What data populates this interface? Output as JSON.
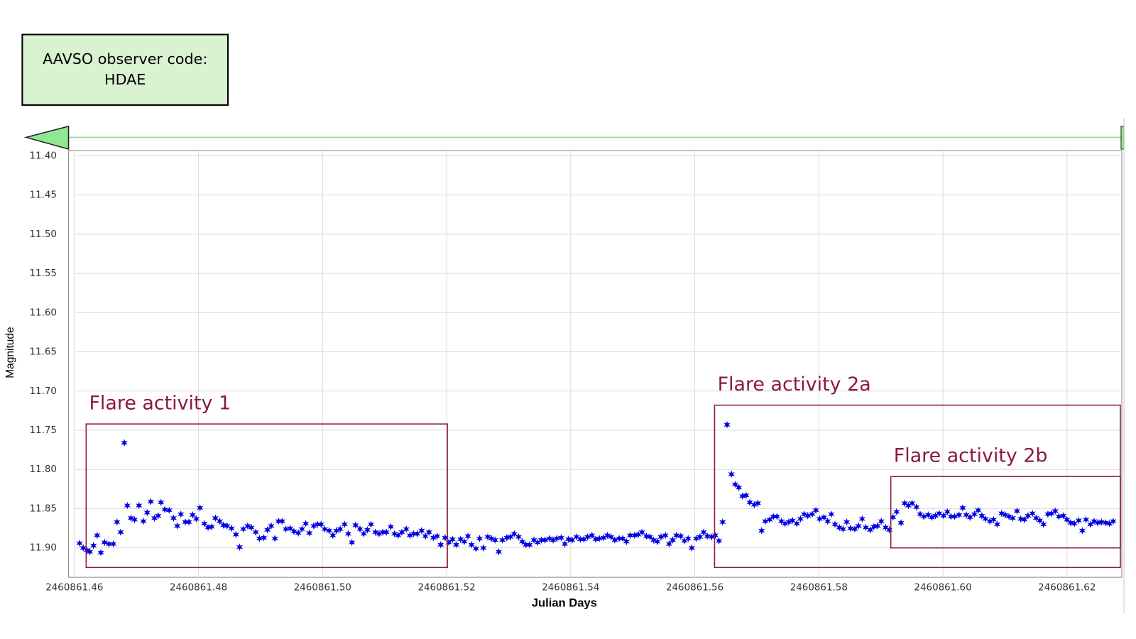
{
  "observer_box": {
    "line1": "AAVSO observer code:",
    "line2": "HDAE"
  },
  "chart_data": {
    "type": "scatter",
    "x_label": "Julian Days",
    "y_label": "Magnitude",
    "color": "#0000e0",
    "grid": true,
    "xlim": [
      2460861.46,
      2460861.6286
    ],
    "ylim": [
      11.9375,
      11.3934
    ],
    "xticks": [
      2460861.46,
      2460861.48,
      {
        "value": 2460861.5,
        "label": "2460861.50"
      },
      2460861.52,
      2460861.54,
      2460861.56,
      2460861.58,
      {
        "value": 2460861.6,
        "label": "2460861.60"
      },
      2460861.62
    ],
    "yticks": [
      {
        "value": 11.4,
        "label": "11.40"
      },
      11.45,
      {
        "value": 11.5,
        "label": "11.50"
      },
      11.55,
      {
        "value": 11.6,
        "label": "11.60"
      },
      11.65,
      {
        "value": 11.7,
        "label": "11.70"
      },
      11.75,
      {
        "value": 11.8,
        "label": "11.80"
      },
      11.85,
      {
        "value": 11.9,
        "label": "11.90"
      }
    ],
    "annotations": [
      {
        "text": "Flare activity 1",
        "x": [
          2460861.46189,
          2460861.52012
        ],
        "y": [
          11.742,
          11.925
        ]
      },
      {
        "text": "Flare activity 2a",
        "x": [
          2460861.56319,
          2460861.6286
        ],
        "y": [
          11.718,
          11.925
        ]
      },
      {
        "text": "Flare activity 2b",
        "x": [
          2460861.5916,
          2460861.6286
        ],
        "y": [
          11.809,
          11.9
        ]
      }
    ],
    "x": [
      2460861.46083,
      2460861.46142,
      2460861.46201,
      2460861.46249,
      2460861.46308,
      2460861.46367,
      2460861.46426,
      2460861.46485,
      2460861.46556,
      2460861.46627,
      2460861.46686,
      2460861.46746,
      2460861.46805,
      2460861.46852,
      2460861.46911,
      2460861.4697,
      2460861.47041,
      2460861.47112,
      2460861.47172,
      2460861.47231,
      2460861.4729,
      2460861.47349,
      2460861.47396,
      2460861.47456,
      2460861.47527,
      2460861.47598,
      2460861.47657,
      2460861.47716,
      2460861.47787,
      2460861.47846,
      2460861.47905,
      2460861.47964,
      2460861.48024,
      2460861.48095,
      2460861.48154,
      2460861.48213,
      2460861.48272,
      2460861.48343,
      2460861.48402,
      2460861.48461,
      2460861.48532,
      2460861.48603,
      2460861.48663,
      2460861.48722,
      2460861.48793,
      2460861.48852,
      2460861.48923,
      2460861.48982,
      2460861.49053,
      2460861.49112,
      2460861.49172,
      2460861.49231,
      2460861.4929,
      2460861.49349,
      2460861.49408,
      2460861.49479,
      2460861.49538,
      2460861.49609,
      2460861.49669,
      2460861.49728,
      2460861.49787,
      2460861.49858,
      2460861.49917,
      2460861.49976,
      2460861.50035,
      2460861.50106,
      2460861.50166,
      2460861.50225,
      2460861.50284,
      2460861.50355,
      2460861.50414,
      2460861.50473,
      2460861.50532,
      2460861.50603,
      2460861.50663,
      2460861.50722,
      2460861.50781,
      2460861.50852,
      2460861.50911,
      2460861.5097,
      2460861.51029,
      2460861.511,
      2460861.5116,
      2460861.51219,
      2460861.51278,
      2460861.51349,
      2460861.51408,
      2460861.51467,
      2460861.51526,
      2460861.51597,
      2460861.51657,
      2460861.51716,
      2460861.51787,
      2460861.51846,
      2460861.51905,
      2460861.51976,
      2460861.52035,
      2460861.52095,
      2460861.52154,
      2460861.52225,
      2460861.52284,
      2460861.52343,
      2460861.52402,
      2460861.52473,
      2460861.52532,
      2460861.52592,
      2460861.52663,
      2460861.52722,
      2460861.52781,
      2460861.5284,
      2460861.52899,
      2460861.5297,
      2460861.53029,
      2460861.53089,
      2460861.5316,
      2460861.53219,
      2460861.53278,
      2460861.53337,
      2460861.53408,
      2460861.53467,
      2460861.53526,
      2460861.53586,
      2460861.53657,
      2460861.53716,
      2460861.53775,
      2460861.53846,
      2460861.53905,
      2460861.53964,
      2460861.54023,
      2460861.54094,
      2460861.54154,
      2460861.54213,
      2460861.54272,
      2460861.54343,
      2460861.54402,
      2460861.54461,
      2460861.54532,
      2460861.54591,
      2460861.54651,
      2460861.5471,
      2460861.54781,
      2460861.5484,
      2460861.54899,
      2460861.54958,
      2460861.55029,
      2460861.55089,
      2460861.55148,
      2460861.55219,
      2460861.55278,
      2460861.55337,
      2460861.55396,
      2460861.55455,
      2460861.55526,
      2460861.55586,
      2460861.55645,
      2460861.55704,
      2460861.55775,
      2460861.55834,
      2460861.55893,
      2460861.55952,
      2460861.56023,
      2460861.56083,
      2460861.56142,
      2460861.56201,
      2460861.56272,
      2460861.56331,
      2460861.5639,
      2460861.56449,
      2460861.5652,
      2460861.56591,
      2460861.56651,
      2460861.5671,
      2460861.56769,
      2460861.56828,
      2460861.56887,
      2460861.56958,
      2460861.57017,
      2460861.57077,
      2460861.57136,
      2460861.57207,
      2460861.57266,
      2460861.57325,
      2460861.57396,
      2460861.57455,
      2460861.57515,
      2460861.57574,
      2460861.57645,
      2460861.57704,
      2460861.57763,
      2460861.57822,
      2460861.57893,
      2460861.57952,
      2460861.58012,
      2460861.58083,
      2460861.58142,
      2460861.58201,
      2460861.5826,
      2460861.58331,
      2460861.5839,
      2460861.58449,
      2460861.58509,
      2460861.5858,
      2460861.58639,
      2460861.58698,
      2460861.58757,
      2460861.58828,
      2460861.58887,
      2460861.58946,
      2460861.59006,
      2460861.59077,
      2460861.59136,
      2460861.59195,
      2460861.59254,
      2460861.59325,
      2460861.59384,
      2460861.59443,
      2460861.59503,
      2460861.59574,
      2460861.59633,
      2460861.59692,
      2460861.59763,
      2460861.59822,
      2460861.59881,
      2460861.5994,
      2460861.60011,
      2460861.60071,
      2460861.6013,
      2460861.60189,
      2460861.6026,
      2460861.60319,
      2460861.60378,
      2460861.60437,
      2460861.60508,
      2460861.60568,
      2460861.60627,
      2460861.60686,
      2460861.60757,
      2460861.60816,
      2460861.60875,
      2460861.60946,
      2460861.61006,
      2460861.61065,
      2460861.61124,
      2460861.61195,
      2460861.61254,
      2460861.61313,
      2460861.61372,
      2460861.61443,
      2460861.61503,
      2460861.61562,
      2460861.61621,
      2460861.61692,
      2460861.61751,
      2460861.6181,
      2460861.61869,
      2460861.6194,
      2460861.62,
      2460861.62059,
      2460861.62118,
      2460861.62189,
      2460861.62248,
      2460861.62307,
      2460861.62378,
      2460861.62437,
      2460861.62496,
      2460861.62556,
      2460861.62627,
      2460861.62686,
      2460861.62745
    ],
    "values": [
      11.894,
      11.9,
      11.903,
      11.905,
      11.897,
      11.884,
      11.906,
      11.893,
      11.895,
      11.895,
      11.867,
      11.88,
      11.766,
      11.846,
      11.862,
      11.864,
      11.846,
      11.866,
      11.855,
      11.841,
      11.862,
      11.859,
      11.842,
      11.851,
      11.852,
      11.862,
      11.872,
      11.857,
      11.867,
      11.867,
      11.858,
      11.863,
      11.849,
      11.869,
      11.874,
      11.873,
      11.862,
      11.866,
      11.871,
      11.872,
      11.875,
      11.883,
      11.899,
      11.876,
      11.872,
      11.874,
      11.88,
      11.888,
      11.887,
      11.877,
      11.872,
      11.888,
      11.866,
      11.866,
      11.876,
      11.875,
      11.879,
      11.881,
      11.876,
      11.869,
      11.881,
      11.872,
      11.87,
      11.87,
      11.876,
      11.878,
      11.884,
      11.878,
      11.876,
      11.87,
      11.882,
      11.893,
      11.871,
      11.876,
      11.882,
      11.877,
      11.87,
      11.88,
      11.882,
      11.88,
      11.88,
      11.873,
      11.882,
      11.884,
      11.88,
      11.876,
      11.884,
      11.882,
      11.882,
      11.878,
      11.885,
      11.88,
      11.887,
      11.885,
      11.896,
      11.887,
      11.893,
      11.889,
      11.896,
      11.889,
      11.892,
      11.885,
      11.896,
      11.901,
      11.888,
      11.9,
      11.886,
      11.888,
      11.89,
      11.905,
      11.89,
      11.887,
      11.886,
      11.882,
      11.886,
      11.892,
      11.896,
      11.896,
      11.89,
      11.893,
      11.89,
      11.89,
      11.888,
      11.89,
      11.888,
      11.887,
      11.895,
      11.889,
      11.89,
      11.886,
      11.889,
      11.889,
      11.886,
      11.884,
      11.889,
      11.888,
      11.887,
      11.884,
      11.886,
      11.89,
      11.888,
      11.888,
      11.892,
      11.884,
      11.884,
      11.883,
      11.88,
      11.885,
      11.886,
      11.89,
      11.892,
      11.886,
      11.884,
      11.895,
      11.89,
      11.884,
      11.885,
      11.891,
      11.888,
      11.9,
      11.888,
      11.886,
      11.88,
      11.885,
      11.886,
      11.884,
      11.891,
      11.867,
      11.743,
      11.806,
      11.819,
      11.823,
      11.834,
      11.833,
      11.842,
      11.845,
      11.843,
      11.878,
      11.866,
      11.864,
      11.86,
      11.86,
      11.866,
      11.869,
      11.867,
      11.865,
      11.869,
      11.863,
      11.857,
      11.859,
      11.857,
      11.852,
      11.863,
      11.861,
      11.866,
      11.857,
      11.87,
      11.874,
      11.876,
      11.867,
      11.875,
      11.876,
      11.872,
      11.863,
      11.874,
      11.877,
      11.873,
      11.872,
      11.866,
      11.874,
      11.877,
      11.861,
      11.854,
      11.868,
      11.843,
      11.846,
      11.843,
      11.848,
      11.857,
      11.86,
      11.858,
      11.861,
      11.859,
      11.856,
      11.859,
      11.854,
      11.86,
      11.86,
      11.858,
      11.849,
      11.858,
      11.861,
      11.857,
      11.852,
      11.859,
      11.863,
      11.866,
      11.864,
      11.87,
      11.856,
      11.858,
      11.86,
      11.862,
      11.853,
      11.863,
      11.864,
      11.859,
      11.856,
      11.862,
      11.865,
      11.87,
      11.857,
      11.856,
      11.853,
      11.86,
      11.859,
      11.864,
      11.868,
      11.869,
      11.865,
      11.878,
      11.864,
      11.87,
      11.866,
      11.868,
      11.867,
      11.868,
      11.869,
      11.866
    ]
  }
}
